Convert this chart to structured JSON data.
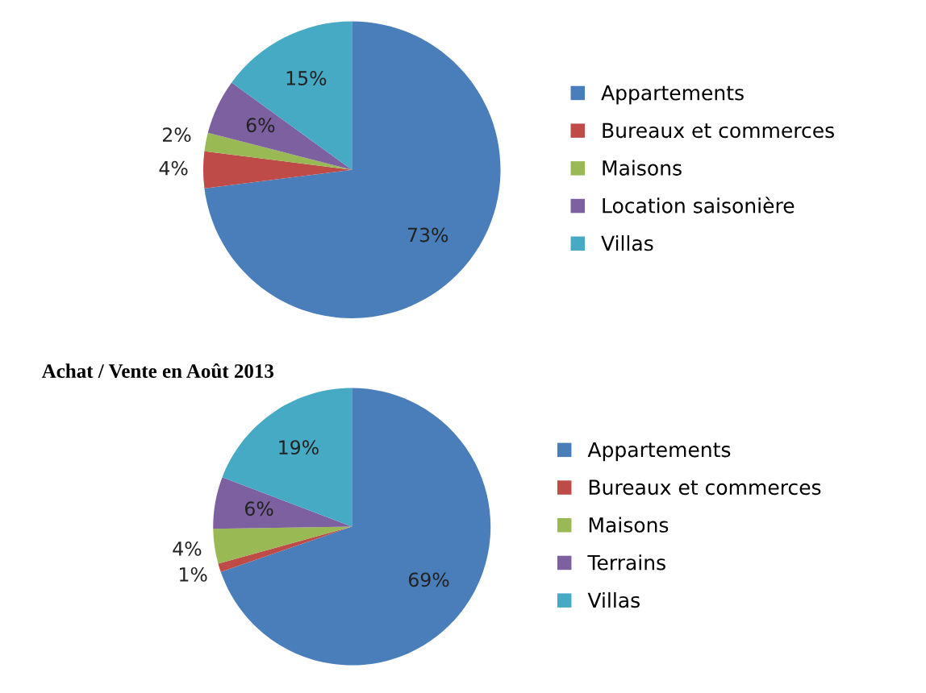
{
  "chart_data": [
    {
      "type": "pie",
      "categories": [
        "Appartements",
        "Bureaux et commerces",
        "Maisons",
        "Location saisonière",
        "Villas"
      ],
      "values": [
        73,
        4,
        2,
        6,
        15
      ],
      "value_labels": [
        "73%",
        "4%",
        "2%",
        "6%",
        "15%"
      ],
      "colors": [
        "#4a7ebb",
        "#be4b48",
        "#98b954",
        "#7d60a0",
        "#46aac5"
      ],
      "legend": "right"
    },
    {
      "type": "pie",
      "title": "Achat / Vente en Août 2013",
      "categories": [
        "Appartements",
        "Bureaux et commerces",
        "Maisons",
        "Terrains",
        "Villas"
      ],
      "values": [
        69,
        1,
        4,
        6,
        19
      ],
      "value_labels": [
        "69%",
        "1%",
        "4%",
        "6%",
        "19%"
      ],
      "colors": [
        "#4a7ebb",
        "#be4b48",
        "#98b954",
        "#7d60a0",
        "#46aac5"
      ],
      "legend": "right"
    }
  ]
}
